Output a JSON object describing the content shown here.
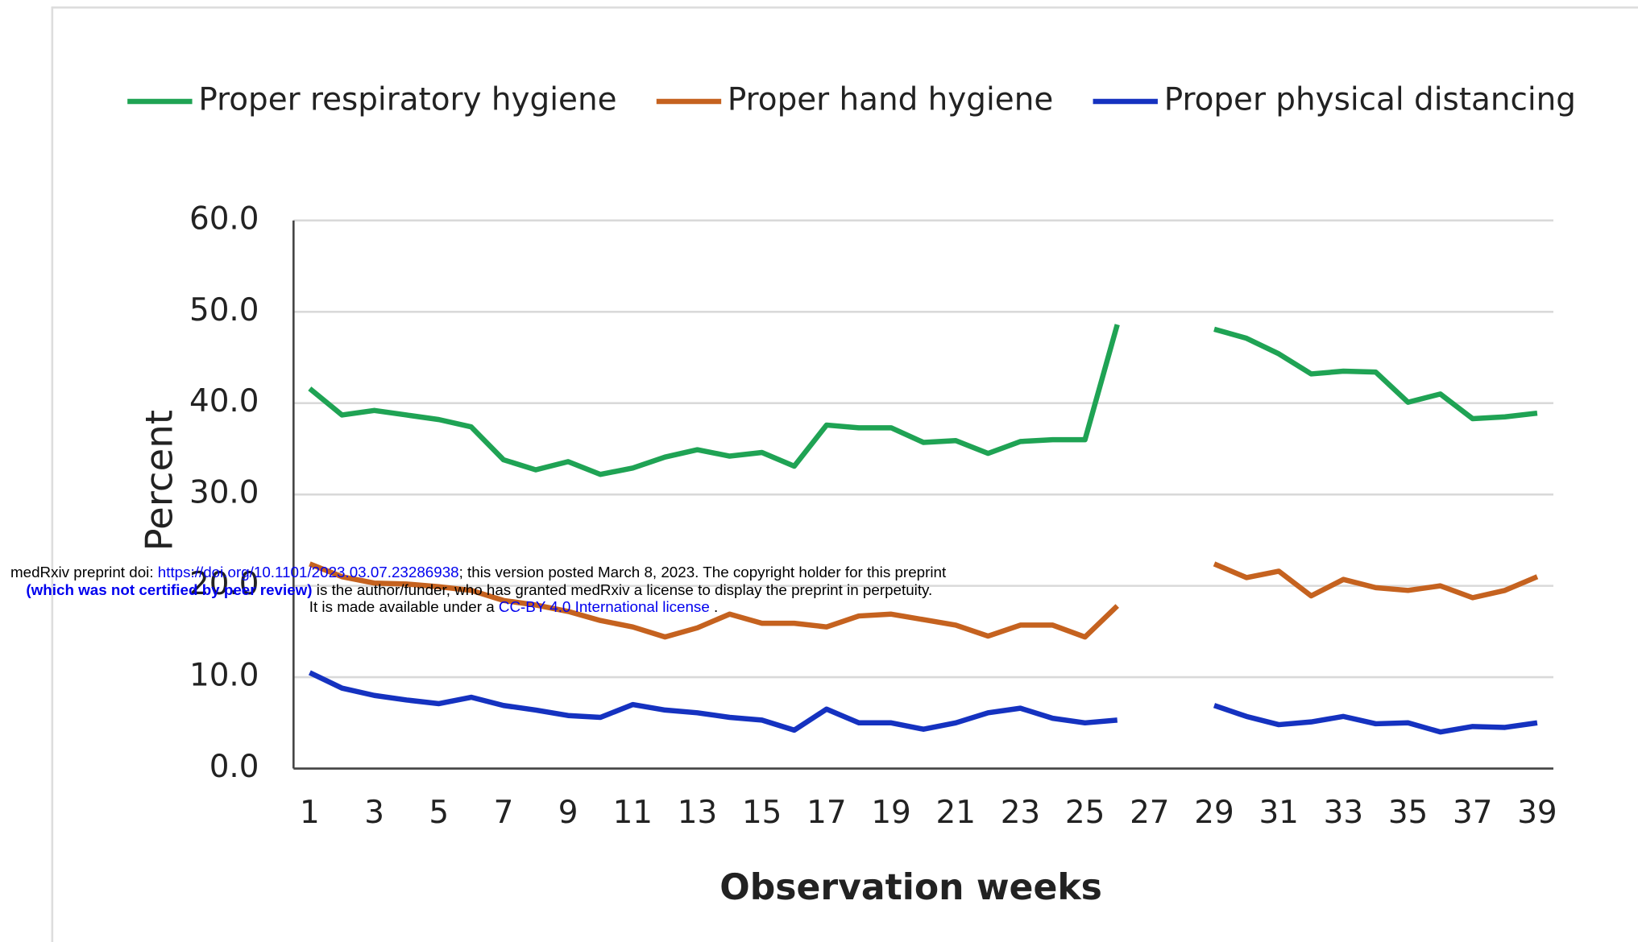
{
  "chart_data": {
    "type": "line",
    "xlabel": "Observation weeks",
    "ylabel": "Percent",
    "x": [
      1,
      2,
      3,
      4,
      5,
      6,
      7,
      8,
      9,
      10,
      11,
      12,
      13,
      14,
      15,
      16,
      17,
      18,
      19,
      20,
      21,
      22,
      23,
      24,
      25,
      26,
      27,
      28,
      29,
      30,
      31,
      32,
      33,
      34,
      35,
      36,
      37,
      38,
      39
    ],
    "xlim": [
      0.5,
      39.5
    ],
    "xticks": [
      1,
      3,
      5,
      7,
      9,
      11,
      13,
      15,
      17,
      19,
      21,
      23,
      25,
      27,
      29,
      31,
      33,
      35,
      37,
      39
    ],
    "ylim": [
      0,
      60
    ],
    "yticks": [
      {
        "value": 0,
        "label": "0.0"
      },
      {
        "value": 10,
        "label": "10.0"
      },
      {
        "value": 20,
        "label": "20.0"
      },
      {
        "value": 30,
        "label": "30.0"
      },
      {
        "value": 40,
        "label": "40.0"
      },
      {
        "value": 50,
        "label": "50.0"
      },
      {
        "value": 60,
        "label": "60.0"
      }
    ],
    "grid": true,
    "legend": "top",
    "series": [
      {
        "name": "Proper respiratory hygiene",
        "color": "#1fa354",
        "values": [
          41.6,
          38.7,
          39.2,
          38.7,
          38.2,
          37.4,
          33.8,
          32.7,
          33.6,
          32.2,
          32.9,
          34.1,
          34.9,
          34.2,
          34.6,
          33.1,
          37.6,
          37.3,
          37.3,
          35.7,
          35.9,
          34.5,
          35.8,
          36.0,
          36.0,
          48.6,
          null,
          null,
          48.1,
          47.1,
          45.4,
          43.2,
          43.5,
          43.4,
          40.1,
          41.0,
          38.3,
          38.5,
          38.9
        ]
      },
      {
        "name": "Proper hand hygiene",
        "color": "#c5621f",
        "values": [
          22.4,
          21.0,
          20.3,
          20.2,
          19.9,
          19.5,
          18.4,
          17.9,
          17.2,
          16.2,
          15.5,
          14.4,
          15.4,
          16.9,
          15.9,
          15.9,
          15.5,
          16.7,
          16.9,
          16.3,
          15.7,
          14.5,
          15.7,
          15.7,
          14.4,
          17.8,
          null,
          null,
          22.4,
          20.9,
          21.6,
          18.9,
          20.7,
          19.8,
          19.5,
          20.0,
          18.7,
          19.5,
          21.0
        ]
      },
      {
        "name": "Proper physical distancing",
        "color": "#1532c0",
        "values": [
          10.5,
          8.8,
          8.0,
          7.5,
          7.1,
          7.8,
          6.9,
          6.4,
          5.8,
          5.6,
          7.0,
          6.4,
          6.1,
          5.6,
          5.3,
          4.2,
          6.5,
          5.0,
          5.0,
          4.3,
          5.0,
          6.1,
          6.6,
          5.5,
          5.0,
          5.3,
          null,
          null,
          6.9,
          5.7,
          4.8,
          5.1,
          5.7,
          4.9,
          5.0,
          4.0,
          4.6,
          4.5,
          5.0
        ]
      }
    ]
  },
  "preprint_notice": {
    "lines": [
      [
        {
          "text": "medRxiv preprint doi: "
        },
        {
          "text": "https://doi.org/10.1101/2023.03.07.23286938",
          "link": true
        },
        {
          "text": "; this version posted March 8, 2023. The copyright holder for this preprint"
        }
      ],
      [
        {
          "text": "(which was not certified by peer review)",
          "link": true,
          "bold": true
        },
        {
          "text": " is the author/funder, who has granted medRxiv a license to display the preprint in perpetuity."
        }
      ],
      [
        {
          "text": "It is made available under a "
        },
        {
          "text": "CC-BY 4.0 International license",
          "link": true
        },
        {
          "text": " ."
        }
      ]
    ]
  }
}
